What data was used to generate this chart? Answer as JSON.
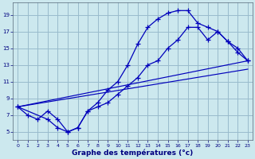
{
  "xlabel": "Graphe des températures (°c)",
  "background_color": "#cce8ee",
  "grid_color": "#99bbcc",
  "line_color": "#0000bb",
  "xlim": [
    -0.5,
    23.5
  ],
  "ylim": [
    4.0,
    20.5
  ],
  "xticks": [
    0,
    1,
    2,
    3,
    4,
    5,
    6,
    7,
    8,
    9,
    10,
    11,
    12,
    13,
    14,
    15,
    16,
    17,
    18,
    19,
    20,
    21,
    22,
    23
  ],
  "yticks": [
    5,
    7,
    9,
    11,
    13,
    15,
    17,
    19
  ],
  "curve1_x": [
    0,
    1,
    2,
    3,
    4,
    5,
    6,
    7,
    8,
    9,
    10,
    11,
    12,
    13,
    14,
    15,
    16,
    17,
    18,
    19,
    20,
    21,
    22,
    23
  ],
  "curve1_y": [
    8.0,
    7.0,
    6.5,
    7.5,
    6.5,
    5.0,
    5.5,
    7.5,
    8.5,
    10.0,
    11.0,
    13.0,
    15.5,
    17.5,
    18.5,
    19.2,
    19.5,
    19.5,
    18.0,
    17.5,
    17.0,
    15.8,
    14.5,
    13.5
  ],
  "curve2_x": [
    0,
    3,
    4,
    5,
    6,
    7,
    8,
    9,
    10,
    11,
    12,
    13,
    14,
    15,
    16,
    17,
    18,
    19,
    20,
    21,
    22,
    23
  ],
  "curve2_y": [
    8.0,
    6.5,
    5.5,
    5.0,
    5.5,
    7.5,
    8.0,
    8.5,
    9.5,
    10.5,
    11.5,
    13.0,
    13.5,
    15.0,
    16.0,
    17.5,
    17.5,
    16.0,
    17.0,
    15.8,
    15.0,
    13.5
  ],
  "trend1_x": [
    0,
    23
  ],
  "trend1_y": [
    8.0,
    13.5
  ],
  "trend2_x": [
    0,
    23
  ],
  "trend2_y": [
    8.0,
    12.5
  ]
}
